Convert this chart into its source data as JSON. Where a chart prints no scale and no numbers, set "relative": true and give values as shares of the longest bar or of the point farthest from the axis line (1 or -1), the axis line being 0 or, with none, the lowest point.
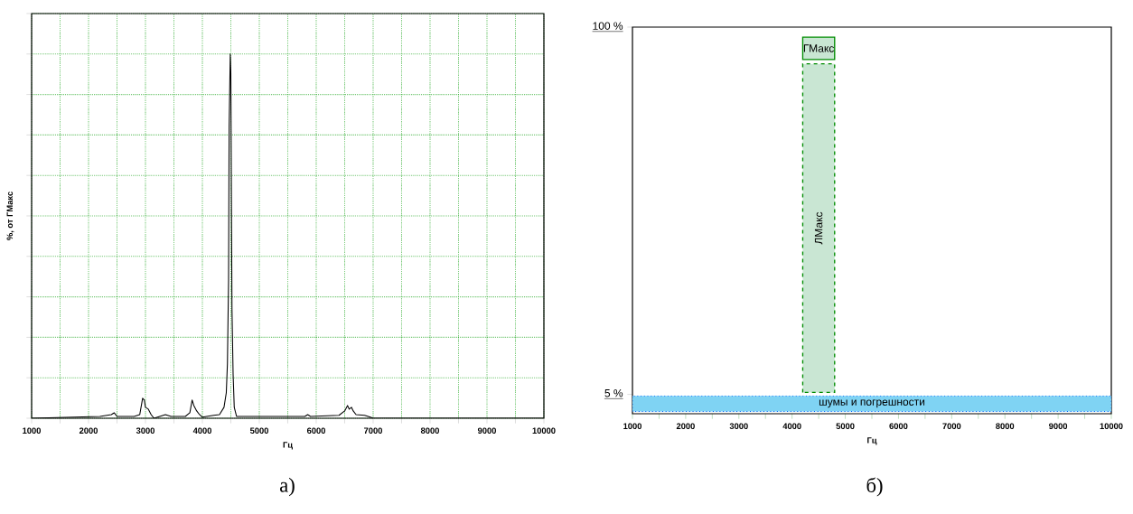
{
  "chart_data": [
    {
      "type": "line",
      "relative": true,
      "xlabel": "Гц",
      "ylabel": "%, от ГМакс",
      "color": "#000000",
      "grid": true,
      "marker": "none",
      "line_style": "solid",
      "xlim": [
        1000,
        10000
      ],
      "xticks": [
        1000,
        {
          "value": 1500,
          "label": null
        },
        2000,
        {
          "value": 2500,
          "label": null
        },
        3000,
        {
          "value": 3500,
          "label": null
        },
        4000,
        {
          "value": 4500,
          "label": null
        },
        5000,
        {
          "value": 5500,
          "label": null
        },
        6000,
        {
          "value": 6500,
          "label": null
        },
        7000,
        {
          "value": 7500,
          "label": null
        },
        8000,
        {
          "value": 8500,
          "label": null
        },
        9000,
        {
          "value": 9500,
          "label": null
        },
        10000
      ],
      "x": [
        1000,
        2200,
        2400,
        2450,
        2500,
        2800,
        2900,
        2950,
        2980,
        3000,
        3050,
        3100,
        3150,
        3350,
        3450,
        3700,
        3780,
        3820,
        3850,
        3900,
        3950,
        4000,
        4200,
        4300,
        4380,
        4420,
        4440,
        4460,
        4470,
        4480,
        4490,
        4500,
        4510,
        4520,
        4540,
        4560,
        4600,
        5000,
        5800,
        5850,
        5900,
        6400,
        6500,
        6550,
        6580,
        6620,
        6650,
        6700,
        6850,
        6950,
        7000,
        10000
      ],
      "values": [
        0,
        0.005,
        0.01,
        0.015,
        0.005,
        0.005,
        0.01,
        0.055,
        0.05,
        0.03,
        0.025,
        0.01,
        0,
        0.01,
        0.005,
        0.005,
        0.015,
        0.05,
        0.035,
        0.02,
        0.01,
        0.003,
        0.008,
        0.01,
        0.03,
        0.07,
        0.15,
        0.38,
        0.8,
        0.9,
        1,
        0.95,
        0.6,
        0.3,
        0.12,
        0.03,
        0.005,
        0.005,
        0.005,
        0.01,
        0.005,
        0.008,
        0.02,
        0.035,
        0.025,
        0.03,
        0.02,
        0.01,
        0.008,
        0.003,
        0,
        0
      ],
      "annotations": [
        "а)"
      ]
    },
    {
      "type": "bar",
      "xlabel": "Гц",
      "grid": false,
      "xlim": [
        1000,
        10000
      ],
      "ylim": [
        0,
        100
      ],
      "xticks": [
        1000,
        {
          "value": 1500,
          "label": null
        },
        2000,
        {
          "value": 2500,
          "label": null
        },
        3000,
        {
          "value": 3500,
          "label": null
        },
        4000,
        {
          "value": 4500,
          "label": null
        },
        5000,
        {
          "value": 5500,
          "label": null
        },
        6000,
        {
          "value": 6500,
          "label": null
        },
        7000,
        {
          "value": 7500,
          "label": null
        },
        8000,
        {
          "value": 8500,
          "label": null
        },
        9000,
        {
          "value": 9500,
          "label": null
        },
        10000
      ],
      "yticks": [
        {
          "value": 5,
          "label": "5 %"
        },
        {
          "value": 100,
          "label": "100 %"
        }
      ],
      "series": [
        {
          "name": "ЛМакс",
          "color": "#c9e6d3",
          "x": [
            4500
          ],
          "base": [
            5.5
          ],
          "values": [
            85
          ],
          "line_style": "dashed"
        },
        {
          "name": "ГМакс",
          "color": "#c9e6d3",
          "x": [
            4500
          ],
          "base": [
            91.6
          ],
          "values": [
            5.8
          ],
          "line_style": "solid"
        }
      ],
      "bands": [
        {
          "axis": "y",
          "from": 0.6,
          "to": 4.6,
          "label": "шумы и погрешности",
          "color": "#7fd3f3"
        }
      ],
      "annotations": [
        "б)"
      ]
    }
  ]
}
